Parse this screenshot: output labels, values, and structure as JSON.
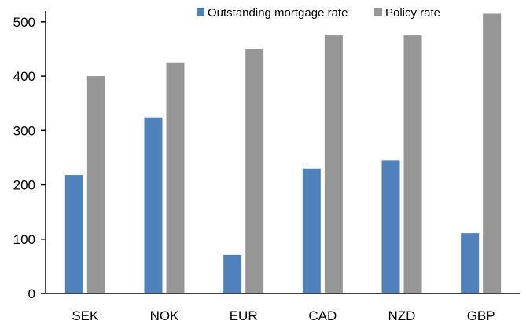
{
  "chart_data": {
    "type": "bar",
    "categories": [
      "SEK",
      "NOK",
      "EUR",
      "CAD",
      "NZD",
      "GBP"
    ],
    "series": [
      {
        "name": "Outstanding mortgage rate",
        "color": "#4F81BD",
        "values": [
          218,
          324,
          71,
          230,
          245,
          111
        ]
      },
      {
        "name": "Policy rate",
        "color": "#969696",
        "values": [
          400,
          425,
          450,
          475,
          475,
          515
        ]
      }
    ],
    "ylim": [
      0,
      520
    ],
    "yticks": [
      0,
      100,
      200,
      300,
      400,
      500
    ],
    "ytick_labels": [
      "0",
      "100",
      "200",
      "300",
      "400",
      "500"
    ],
    "legend_position": "top",
    "grid": false,
    "title": "",
    "xlabel": "",
    "ylabel": ""
  }
}
